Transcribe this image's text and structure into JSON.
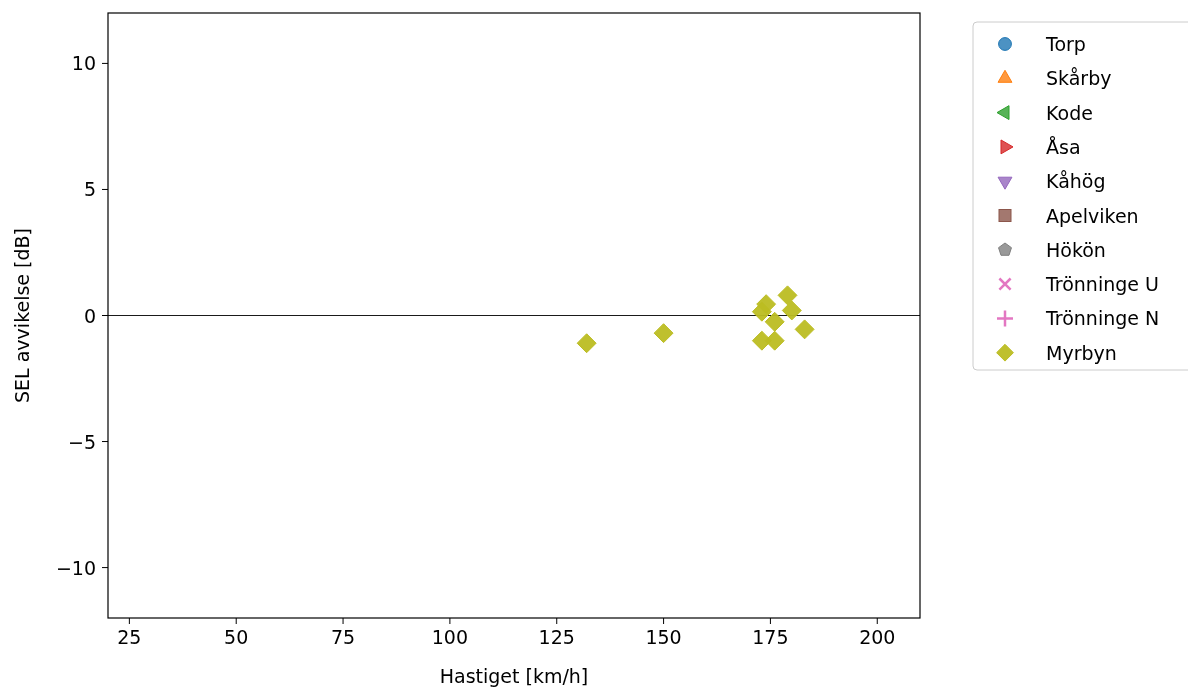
{
  "chart_data": {
    "type": "scatter",
    "xlabel": "Hastiget [km/h]",
    "ylabel": "SEL avvikelse [dB]",
    "xlim": [
      20,
      210
    ],
    "ylim": [
      -12,
      12
    ],
    "xticks": [
      25,
      50,
      75,
      100,
      125,
      150,
      175,
      200
    ],
    "yticks": [
      -10,
      -5,
      0,
      5,
      10
    ],
    "legend": "top right",
    "grid": false,
    "ref_lines": [
      {
        "axis": "y",
        "value": 0,
        "color": "#000000"
      }
    ],
    "series": [
      {
        "name": "Torp",
        "color": "#1f77b4",
        "marker": "circle"
      },
      {
        "name": "Skårby",
        "color": "#ff7f0e",
        "marker": "triangle"
      },
      {
        "name": "Kode",
        "color": "#2ca02c",
        "marker": "triangle-left"
      },
      {
        "name": "Åsa",
        "color": "#d62728",
        "marker": "triangle-right"
      },
      {
        "name": "Kåhög",
        "color": "#9467bd",
        "marker": "triangle-down"
      },
      {
        "name": "Apelviken",
        "color": "#8c564b",
        "marker": "square"
      },
      {
        "name": "Hökön",
        "color": "#7f7f7f",
        "marker": "pentagon"
      },
      {
        "name": "Trönninge U",
        "color": "#e377c2",
        "marker": "cross"
      },
      {
        "name": "Trönninge N",
        "color": "#e377c2",
        "marker": "plus"
      },
      {
        "name": "Myrbyn",
        "color": "#bcbd22",
        "marker": "diamond",
        "x": [
          132,
          150,
          173,
          176,
          174,
          173,
          176,
          179,
          180,
          183
        ],
        "values": [
          -1.1,
          -0.7,
          -1.0,
          -1.0,
          0.45,
          0.15,
          -0.25,
          0.8,
          0.2,
          -0.55
        ]
      }
    ]
  }
}
